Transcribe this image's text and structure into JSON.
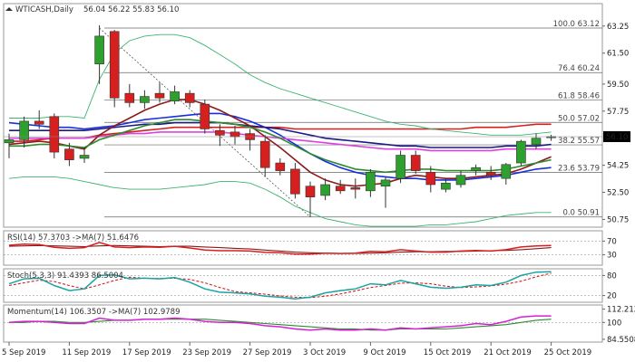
{
  "chart_data": {
    "type": "candlestick",
    "symbol_header": "WTICASH,Daily",
    "ohlc_header": "56.04 56.22 55.83 56.10",
    "current_price_label": "56.10",
    "colors": {
      "bull": "#2ea02e",
      "bear": "#d62020",
      "ma_red": "#d62020",
      "ma_blue": "#1a2ee0",
      "ma_navy": "#1a1a80",
      "ma_magenta": "#e040e0",
      "ma_maroon": "#8b1a1a",
      "ma_green": "#2e8b2e",
      "bollinger": "#3cb371",
      "stoch_main": "#1aa3a3",
      "stoch_signal": "#d62020",
      "momentum_main": "#d620d6",
      "momentum_signal": "#2e8b2e",
      "price_label_bg": "#000000"
    },
    "price_axis": {
      "ylim": [
        50.25,
        64.7
      ],
      "ticks": [
        "63.25",
        "61.50",
        "59.50",
        "57.75",
        "56.10",
        "54.25",
        "52.50",
        "50.75"
      ],
      "tick_values": [
        63.25,
        61.5,
        59.5,
        57.75,
        56.1,
        54.25,
        52.5,
        50.75
      ]
    },
    "fibonacci": [
      {
        "label": "100.0 63.12",
        "value": 63.12
      },
      {
        "label": "76.4 60.24",
        "value": 60.24
      },
      {
        "label": "61.8 58.46",
        "value": 58.46
      },
      {
        "label": "50.0 57.02",
        "value": 57.02
      },
      {
        "label": "38.2 55.57",
        "value": 55.57
      },
      {
        "label": "23.6 53.79",
        "value": 53.79
      },
      {
        "label": "0.0 50.91",
        "value": 50.91
      }
    ],
    "x_labels": [
      "5 Sep 2019",
      "11 Sep 2019",
      "17 Sep 2019",
      "23 Sep 2019",
      "27 Sep 2019",
      "3 Oct 2019",
      "9 Oct 2019",
      "15 Oct 2019",
      "21 Oct 2019",
      "25 Oct 2019"
    ],
    "x_label_bar_index": [
      0,
      4,
      8,
      12,
      16,
      20,
      24,
      28,
      32,
      36
    ],
    "candles": [
      {
        "o": 55.7,
        "h": 56.3,
        "l": 54.7,
        "c": 55.9
      },
      {
        "o": 55.9,
        "h": 57.4,
        "l": 55.4,
        "c": 57.1
      },
      {
        "o": 57.1,
        "h": 57.8,
        "l": 56.6,
        "c": 56.9
      },
      {
        "o": 57.4,
        "h": 57.6,
        "l": 54.7,
        "c": 55.1
      },
      {
        "o": 55.3,
        "h": 55.7,
        "l": 54.2,
        "c": 54.6
      },
      {
        "o": 54.7,
        "h": 55.4,
        "l": 54.4,
        "c": 54.9
      },
      {
        "o": 60.8,
        "h": 63.3,
        "l": 59.5,
        "c": 62.6
      },
      {
        "o": 62.9,
        "h": 63.0,
        "l": 58.0,
        "c": 58.6
      },
      {
        "o": 58.9,
        "h": 59.5,
        "l": 58.0,
        "c": 58.3
      },
      {
        "o": 58.3,
        "h": 59.1,
        "l": 57.9,
        "c": 58.7
      },
      {
        "o": 58.9,
        "h": 59.6,
        "l": 58.3,
        "c": 58.6
      },
      {
        "o": 58.4,
        "h": 59.4,
        "l": 58.2,
        "c": 59.0
      },
      {
        "o": 58.9,
        "h": 59.1,
        "l": 58.0,
        "c": 58.3
      },
      {
        "o": 58.2,
        "h": 58.5,
        "l": 56.3,
        "c": 56.6
      },
      {
        "o": 56.5,
        "h": 56.9,
        "l": 55.5,
        "c": 56.2
      },
      {
        "o": 56.4,
        "h": 56.8,
        "l": 55.6,
        "c": 56.1
      },
      {
        "o": 56.3,
        "h": 56.6,
        "l": 55.2,
        "c": 55.9
      },
      {
        "o": 55.8,
        "h": 56.2,
        "l": 53.5,
        "c": 54.1
      },
      {
        "o": 54.4,
        "h": 54.7,
        "l": 53.6,
        "c": 53.9
      },
      {
        "o": 54.0,
        "h": 54.4,
        "l": 52.1,
        "c": 52.4
      },
      {
        "o": 52.9,
        "h": 53.2,
        "l": 50.9,
        "c": 52.2
      },
      {
        "o": 52.3,
        "h": 53.4,
        "l": 52.0,
        "c": 53.0
      },
      {
        "o": 52.9,
        "h": 53.3,
        "l": 52.4,
        "c": 52.6
      },
      {
        "o": 52.8,
        "h": 53.4,
        "l": 52.1,
        "c": 52.7
      },
      {
        "o": 52.6,
        "h": 54.0,
        "l": 52.2,
        "c": 53.8
      },
      {
        "o": 52.9,
        "h": 53.5,
        "l": 51.5,
        "c": 53.3
      },
      {
        "o": 53.4,
        "h": 55.2,
        "l": 53.1,
        "c": 54.9
      },
      {
        "o": 54.9,
        "h": 55.2,
        "l": 53.7,
        "c": 53.9
      },
      {
        "o": 53.8,
        "h": 54.2,
        "l": 52.5,
        "c": 53.0
      },
      {
        "o": 52.7,
        "h": 53.4,
        "l": 52.5,
        "c": 53.1
      },
      {
        "o": 53.0,
        "h": 53.9,
        "l": 52.8,
        "c": 53.6
      },
      {
        "o": 53.9,
        "h": 54.3,
        "l": 53.6,
        "c": 54.1
      },
      {
        "o": 53.8,
        "h": 54.2,
        "l": 53.3,
        "c": 53.6
      },
      {
        "o": 53.4,
        "h": 54.4,
        "l": 53.0,
        "c": 54.3
      },
      {
        "o": 54.4,
        "h": 55.9,
        "l": 54.2,
        "c": 55.8
      },
      {
        "o": 55.6,
        "h": 56.3,
        "l": 55.3,
        "c": 56.0
      },
      {
        "o": 56.04,
        "h": 56.22,
        "l": 55.83,
        "c": 56.1
      }
    ],
    "moving_averages": [
      {
        "color_key": "ma_red",
        "values": [
          55.8,
          55.8,
          55.9,
          56.0,
          56.0,
          56.0,
          56.2,
          56.3,
          56.4,
          56.5,
          56.6,
          56.7,
          56.7,
          56.7,
          56.7,
          56.7,
          56.7,
          56.7,
          56.7,
          56.6,
          56.6,
          56.6,
          56.6,
          56.6,
          56.6,
          56.6,
          56.6,
          56.6,
          56.6,
          56.6,
          56.6,
          56.7,
          56.7,
          56.7,
          56.8,
          56.9,
          56.9
        ]
      },
      {
        "color_key": "ma_blue",
        "values": [
          57.0,
          56.9,
          56.8,
          56.7,
          56.7,
          56.6,
          56.7,
          56.8,
          57.0,
          57.2,
          57.3,
          57.4,
          57.5,
          57.6,
          57.6,
          57.4,
          57.1,
          56.7,
          56.2,
          55.6,
          55.0,
          54.5,
          54.1,
          53.8,
          53.6,
          53.5,
          53.4,
          53.4,
          53.3,
          53.3,
          53.3,
          53.4,
          53.5,
          53.6,
          53.8,
          54.0,
          54.1
        ]
      },
      {
        "color_key": "ma_navy",
        "values": [
          56.5,
          56.5,
          56.5,
          56.5,
          56.5,
          56.5,
          56.6,
          56.7,
          56.8,
          56.9,
          56.9,
          57.0,
          57.0,
          57.0,
          57.0,
          56.9,
          56.8,
          56.7,
          56.6,
          56.4,
          56.2,
          56.0,
          55.9,
          55.8,
          55.7,
          55.6,
          55.5,
          55.5,
          55.4,
          55.4,
          55.4,
          55.4,
          55.4,
          55.5,
          55.5,
          55.5,
          55.6
        ]
      },
      {
        "color_key": "ma_magenta",
        "values": [
          56.0,
          56.0,
          56.0,
          56.0,
          56.0,
          56.0,
          56.1,
          56.2,
          56.3,
          56.3,
          56.4,
          56.4,
          56.4,
          56.4,
          56.4,
          56.3,
          56.2,
          56.1,
          56.0,
          55.9,
          55.8,
          55.7,
          55.6,
          55.5,
          55.4,
          55.3,
          55.3,
          55.3,
          55.2,
          55.2,
          55.2,
          55.2,
          55.2,
          55.3,
          55.3,
          55.3,
          55.3
        ]
      },
      {
        "color_key": "ma_maroon",
        "values": [
          55.6,
          55.7,
          55.8,
          55.7,
          55.5,
          55.3,
          56.2,
          56.8,
          57.3,
          57.8,
          58.2,
          58.5,
          58.5,
          58.2,
          57.8,
          57.3,
          56.8,
          56.1,
          55.4,
          54.6,
          53.8,
          53.3,
          53.0,
          52.9,
          53.0,
          53.1,
          53.4,
          53.6,
          53.5,
          53.4,
          53.4,
          53.5,
          53.6,
          53.7,
          54.0,
          54.4,
          54.8
        ]
      },
      {
        "color_key": "ma_green",
        "values": [
          55.5,
          55.5,
          55.6,
          55.6,
          55.5,
          55.4,
          55.9,
          56.2,
          56.5,
          56.8,
          57.0,
          57.2,
          57.2,
          57.1,
          57.0,
          56.9,
          56.7,
          56.4,
          56.0,
          55.5,
          55.0,
          54.6,
          54.3,
          54.0,
          53.9,
          53.8,
          53.9,
          54.0,
          54.0,
          53.9,
          53.9,
          53.9,
          53.9,
          54.0,
          54.2,
          54.4,
          54.6
        ]
      },
      {
        "color_key": "bollinger",
        "values": [
          57.3,
          57.3,
          57.3,
          57.4,
          57.4,
          57.3,
          59.8,
          61.5,
          62.3,
          62.6,
          62.7,
          62.7,
          62.5,
          62.0,
          61.4,
          60.8,
          60.1,
          59.6,
          59.2,
          58.9,
          58.6,
          58.3,
          58.0,
          57.7,
          57.4,
          57.1,
          56.9,
          56.8,
          56.6,
          56.5,
          56.4,
          56.3,
          56.2,
          56.2,
          56.2,
          56.3,
          56.4
        ]
      },
      {
        "color_key": "bollinger",
        "values": [
          53.4,
          53.5,
          53.5,
          53.5,
          53.4,
          53.2,
          53.0,
          52.8,
          52.7,
          52.7,
          52.7,
          52.8,
          52.9,
          53.0,
          53.2,
          53.2,
          53.1,
          52.7,
          52.2,
          51.6,
          51.2,
          50.8,
          50.6,
          50.4,
          50.3,
          50.3,
          50.3,
          50.3,
          50.4,
          50.4,
          50.5,
          50.6,
          50.8,
          51.0,
          51.1,
          51.2,
          51.2
        ]
      }
    ],
    "rsi": {
      "header": "RSI(14) 57.3703 ->MA(7) 51.6476",
      "ylim": [
        0,
        100
      ],
      "ticks": [
        "70",
        "30"
      ],
      "tick_values": [
        70,
        30
      ],
      "levels": [
        70,
        30
      ],
      "main": [
        58,
        61,
        60,
        52,
        49,
        51,
        66,
        53,
        51,
        53,
        52,
        55,
        50,
        44,
        42,
        42,
        41,
        37,
        36,
        32,
        32,
        35,
        34,
        35,
        40,
        39,
        45,
        41,
        38,
        38,
        41,
        43,
        41,
        45,
        53,
        56,
        57
      ],
      "signal": [
        55,
        56,
        57,
        56,
        55,
        54,
        56,
        57,
        56,
        55,
        54,
        55,
        55,
        53,
        51,
        49,
        47,
        44,
        41,
        38,
        36,
        35,
        34,
        34,
        35,
        36,
        38,
        39,
        39,
        40,
        40,
        41,
        42,
        43,
        45,
        48,
        51
      ]
    },
    "stoch": {
      "header": "Stoch(5,3,3) 91.4393 86.5004",
      "ylim": [
        0,
        100
      ],
      "ticks": [
        "80",
        "20"
      ],
      "tick_values": [
        80,
        20
      ],
      "levels": [
        80,
        20
      ],
      "main": [
        55,
        70,
        72,
        50,
        35,
        40,
        80,
        82,
        70,
        72,
        70,
        74,
        60,
        40,
        30,
        28,
        25,
        18,
        15,
        10,
        15,
        28,
        35,
        40,
        55,
        52,
        65,
        55,
        45,
        42,
        45,
        52,
        50,
        60,
        80,
        90,
        91
      ],
      "signal": [
        50,
        58,
        66,
        62,
        50,
        40,
        52,
        65,
        75,
        72,
        71,
        72,
        68,
        58,
        44,
        32,
        28,
        24,
        19,
        15,
        14,
        18,
        25,
        34,
        44,
        50,
        57,
        58,
        55,
        48,
        44,
        46,
        49,
        54,
        63,
        76,
        87
      ]
    },
    "momentum": {
      "header": "Momentum(14) 106.3507 ->MA(7) 102.9789",
      "ylim": [
        82,
        116
      ],
      "ticks": [
        "112.2125",
        "100",
        "84.5508"
      ],
      "tick_values": [
        112.2125,
        100,
        84.5508
      ],
      "main": [
        100,
        101,
        101,
        100,
        99,
        99,
        104,
        102,
        102,
        103,
        103,
        104,
        103,
        101,
        100,
        100,
        99,
        97,
        96,
        94,
        93,
        94,
        93,
        93,
        94,
        93,
        95,
        94,
        95,
        96,
        97,
        99,
        98,
        101,
        105,
        106,
        106
      ],
      "signal": [
        100,
        100,
        101,
        101,
        100,
        100,
        101,
        102,
        102,
        103,
        103,
        103,
        103,
        103,
        102,
        101,
        100,
        99,
        98,
        97,
        96,
        95,
        94,
        94,
        93,
        93,
        94,
        94,
        94,
        94,
        95,
        96,
        97,
        98,
        100,
        102,
        103
      ]
    }
  }
}
